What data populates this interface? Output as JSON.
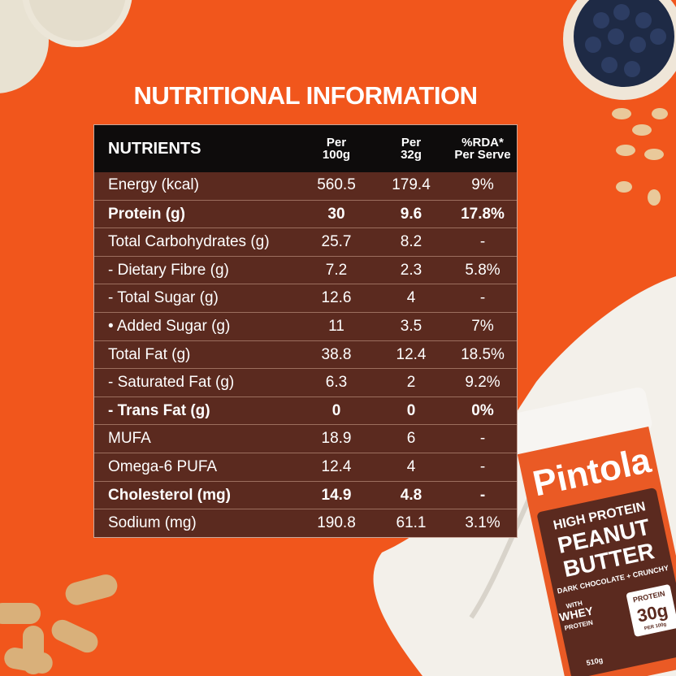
{
  "title": "NUTRITIONAL INFORMATION",
  "table": {
    "header": [
      [
        "NUTRIENTS"
      ],
      [
        "Per",
        "100g"
      ],
      [
        "Per",
        "32g"
      ],
      [
        "%RDA*",
        "Per Serve"
      ]
    ],
    "rows": [
      {
        "cells": [
          "Energy (kcal)",
          "560.5",
          "179.4",
          "9%"
        ]
      },
      {
        "cells": [
          "Protein (g)",
          "30",
          "9.6",
          "17.8%"
        ],
        "bold": true
      },
      {
        "cells": [
          "Total Carbohydrates (g)",
          "25.7",
          "8.2",
          "-"
        ]
      },
      {
        "cells": [
          "- Dietary Fibre (g)",
          "7.2",
          "2.3",
          "5.8%"
        ]
      },
      {
        "cells": [
          "- Total Sugar (g)",
          "12.6",
          "4",
          "-"
        ]
      },
      {
        "cells": [
          "• Added Sugar (g)",
          "11",
          "3.5",
          "7%"
        ]
      },
      {
        "cells": [
          "Total Fat (g)",
          "38.8",
          "12.4",
          "18.5%"
        ]
      },
      {
        "cells": [
          "- Saturated Fat (g)",
          "6.3",
          "2",
          "9.2%"
        ]
      },
      {
        "cells": [
          "- Trans Fat (g)",
          "0",
          "0",
          "0%"
        ],
        "bold": true
      },
      {
        "cells": [
          "MUFA",
          "18.9",
          "6",
          "-"
        ]
      },
      {
        "cells": [
          "Omega-6 PUFA",
          "12.4",
          "4",
          "-"
        ]
      },
      {
        "cells": [
          "Cholesterol (mg)",
          "14.9",
          "4.8",
          "-"
        ],
        "bold": true
      },
      {
        "cells": [
          "Sodium (mg)",
          "190.8",
          "61.1",
          "3.1%"
        ]
      }
    ]
  },
  "jar": {
    "brand": "Pintola",
    "line1": "HIGH PROTEIN",
    "line2": "PEANUT",
    "line3": "BUTTER",
    "flavour": "DARK CHOCOLATE + CRUNCHY",
    "with": "WITH",
    "whey": "WHEY",
    "whey2": "PROTEIN",
    "badge": "PROTEIN",
    "amount": "30g",
    "per": "PER 100g",
    "weight": "510g"
  }
}
